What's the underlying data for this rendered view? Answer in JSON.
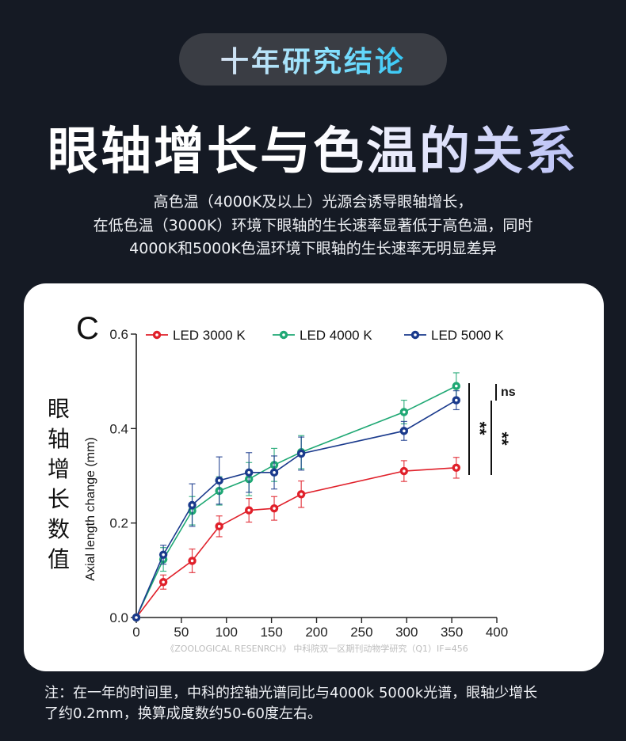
{
  "header": {
    "badge": "十年研究结论",
    "title": "眼轴增长与色温的关系",
    "subtitle_lines": [
      "高色温（4000K及以上）光源会诱导眼轴增长，",
      "在低色温（3000K）环境下眼轴的生长速率显著低于高色温，同时",
      "4000K和5000K色温环境下眼轴的生长速率无明显差异"
    ]
  },
  "chart_data": {
    "type": "line",
    "panel_label": "C",
    "xlabel": "",
    "ylabel": "Axial length change (mm)",
    "ylabel_zh": "眼轴增长数值",
    "xlim": [
      0,
      400
    ],
    "ylim": [
      0,
      0.6
    ],
    "xticks": [
      "0",
      "50",
      "100",
      "150",
      "200",
      "250",
      "300",
      "350",
      "400"
    ],
    "yticks": [
      "0.0",
      "0.2",
      "0.4",
      "0.6"
    ],
    "grid": false,
    "legend_position": "top",
    "x": [
      0,
      30,
      62,
      92,
      125,
      153,
      183,
      297,
      355
    ],
    "series": [
      {
        "name": "LED 3000 K",
        "color": "#e0202a",
        "values": [
          0,
          0.075,
          0.12,
          0.193,
          0.227,
          0.231,
          0.261,
          0.31,
          0.317
        ],
        "errors": [
          0,
          0.015,
          0.025,
          0.022,
          0.025,
          0.025,
          0.028,
          0.022,
          0.022
        ]
      },
      {
        "name": "LED 4000 K",
        "color": "#1fa874",
        "values": [
          0,
          0.123,
          0.226,
          0.268,
          0.293,
          0.323,
          0.35,
          0.435,
          0.49
        ],
        "errors": [
          0,
          0.025,
          0.03,
          0.03,
          0.035,
          0.035,
          0.035,
          0.025,
          0.028
        ]
      },
      {
        "name": "LED 5000 K",
        "color": "#1a3a8c",
        "values": [
          0,
          0.133,
          0.238,
          0.29,
          0.307,
          0.307,
          0.347,
          0.395,
          0.46
        ],
        "errors": [
          0,
          0.02,
          0.045,
          0.05,
          0.042,
          0.035,
          0.035,
          0.02,
          0.02
        ]
      }
    ],
    "significance": [
      {
        "label": "ns",
        "between": [
          "LED 4000 K",
          "LED 5000 K"
        ]
      },
      {
        "label": "**",
        "between": [
          "LED 3000 K",
          "LED 4000 K"
        ]
      },
      {
        "label": "**",
        "between": [
          "LED 3000 K",
          "LED 5000 K"
        ]
      }
    ],
    "source": "《ZOOLOGICAL RESENRCH》 中科院双一区期刊动物学研究（Q1）IF=456"
  },
  "note_lines": [
    "注：在一年的时间里，中科的控轴光谱同比与4000k 5000k光谱，眼轴少增长",
    "了约0.2mm，换算成度数约50-60度左右。"
  ]
}
